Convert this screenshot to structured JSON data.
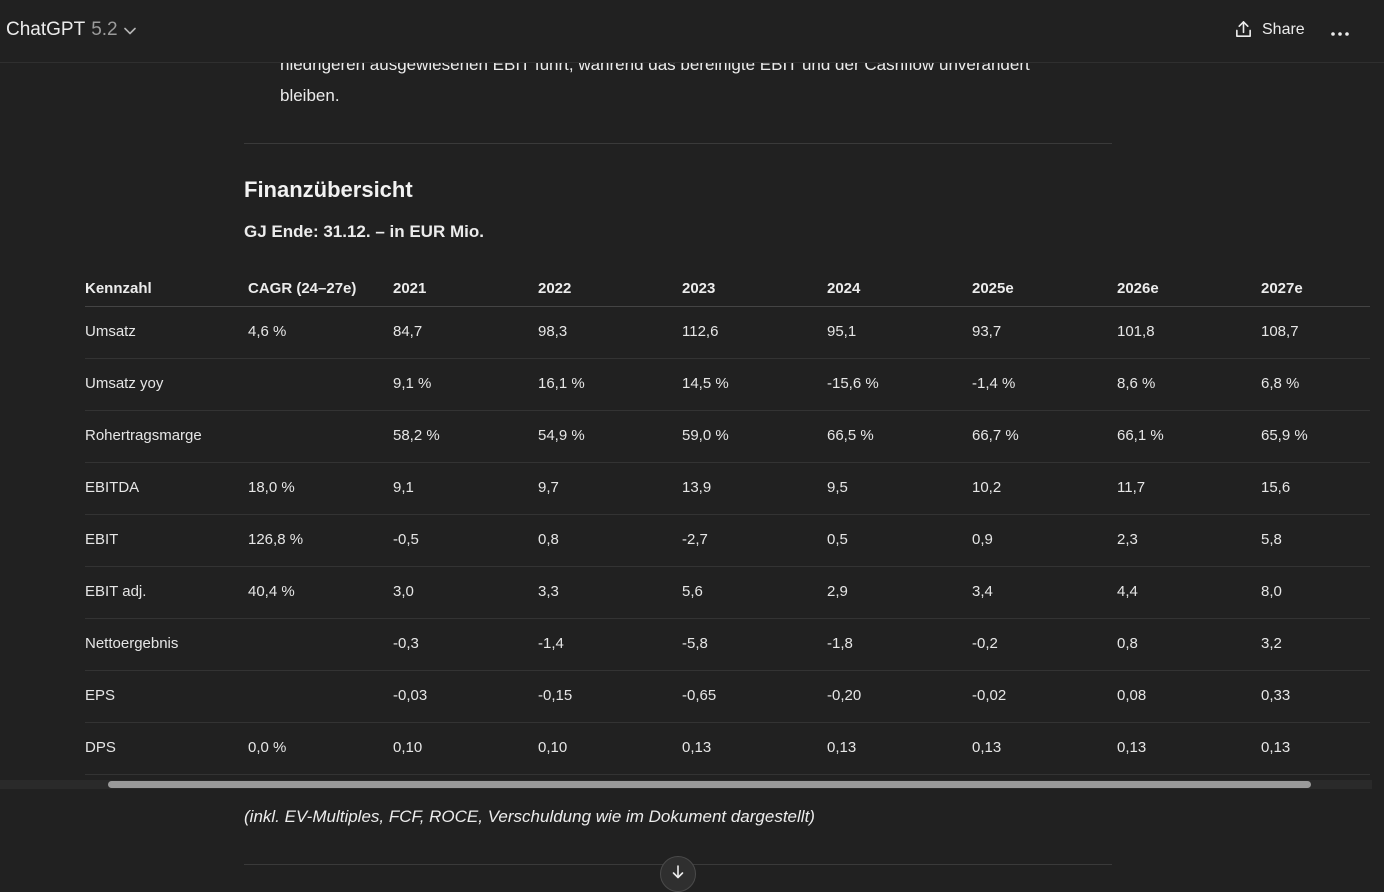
{
  "header": {
    "model_name": "ChatGPT",
    "model_version": "5.2",
    "share_label": "Share"
  },
  "content": {
    "partial_line1": "niedrigeren ausgewiesenen EBIT führt, während das bereinigte EBIT und der Cashflow unverändert",
    "partial_line2": "bleiben.",
    "heading": "Finanzübersicht",
    "subheading": "GJ Ende: 31.12. – in EUR Mio.",
    "note": "(inkl. EV-Multiples, FCF, ROCE, Verschuldung wie im Dokument dargestellt)"
  },
  "table": {
    "headers": [
      "Kennzahl",
      "CAGR (24–27e)",
      "2021",
      "2022",
      "2023",
      "2024",
      "2025e",
      "2026e",
      "2027e"
    ],
    "rows": [
      [
        "Umsatz",
        "4,6 %",
        "84,7",
        "98,3",
        "112,6",
        "95,1",
        "93,7",
        "101,8",
        "108,7"
      ],
      [
        "Umsatz yoy",
        "",
        "9,1 %",
        "16,1 %",
        "14,5 %",
        "-15,6 %",
        "-1,4 %",
        "8,6 %",
        "6,8 %"
      ],
      [
        "Rohertragsmarge",
        "",
        "58,2 %",
        "54,9 %",
        "59,0 %",
        "66,5 %",
        "66,7 %",
        "66,1 %",
        "65,9 %"
      ],
      [
        "EBITDA",
        "18,0 %",
        "9,1",
        "9,7",
        "13,9",
        "9,5",
        "10,2",
        "11,7",
        "15,6"
      ],
      [
        "EBIT",
        "126,8 %",
        "-0,5",
        "0,8",
        "-2,7",
        "0,5",
        "0,9",
        "2,3",
        "5,8"
      ],
      [
        "EBIT adj.",
        "40,4 %",
        "3,0",
        "3,3",
        "5,6",
        "2,9",
        "3,4",
        "4,4",
        "8,0"
      ],
      [
        "Nettoergebnis",
        "",
        "-0,3",
        "-1,4",
        "-5,8",
        "-1,8",
        "-0,2",
        "0,8",
        "3,2"
      ],
      [
        "EPS",
        "",
        "-0,03",
        "-0,15",
        "-0,65",
        "-0,20",
        "-0,02",
        "0,08",
        "0,33"
      ],
      [
        "DPS",
        "0,0 %",
        "0,10",
        "0,10",
        "0,13",
        "0,13",
        "0,13",
        "0,13",
        "0,13"
      ]
    ]
  },
  "icons": {
    "model_chevron": "chevron-down-icon",
    "share": "share-upload-icon",
    "more": "more-horizontal-icon",
    "scroll_down": "arrow-down-icon"
  },
  "colors": {
    "background": "#212121",
    "text": "#ececec",
    "muted": "#9b9b9b"
  }
}
